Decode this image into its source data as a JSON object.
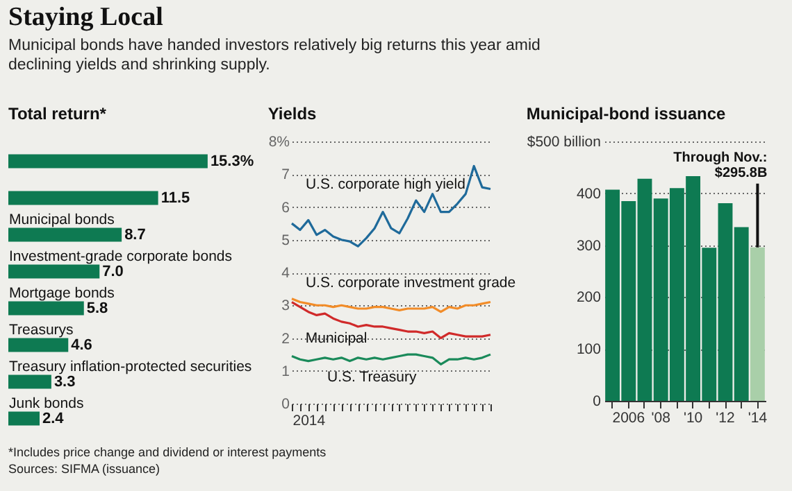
{
  "chart_data": [
    {
      "type": "other",
      "title": "Staying Local",
      "subtitle": "Municipal bonds have handed investors relatively big returns this year amid declining yields and shrinking supply.",
      "annotations": [
        "*Includes price change and dividend or interest payments",
        "Sources: SIFMA (issuance)"
      ]
    },
    {
      "type": "bar",
      "orientation": "horizontal",
      "title": "Total return*",
      "categories": [
        null,
        null,
        "Municipal bonds",
        "Investment-grade corporate bonds",
        "Mortgage bonds",
        "Treasurys",
        "Treasury inflation-protected securities",
        "Junk bonds"
      ],
      "values": [
        15.3,
        11.5,
        8.7,
        7.0,
        5.8,
        4.6,
        3.3,
        2.4
      ],
      "value_labels": [
        "15.3%",
        "11.5",
        "8.7",
        "7.0",
        "5.8",
        "4.6",
        "3.3",
        "2.4"
      ],
      "color": "#0e7a52",
      "tick_labels": "y"
    },
    {
      "type": "line",
      "title": "Yields",
      "categories": [
        null,
        null,
        "2014",
        null,
        null,
        null,
        null,
        null,
        null,
        null,
        null,
        null,
        null,
        null,
        null,
        null,
        null,
        null,
        null,
        null,
        null,
        null,
        null,
        null,
        null
      ],
      "series": [
        {
          "name": "U.S. corporate high yield",
          "color": "#1f6a9a",
          "values": [
            5.5,
            5.3,
            5.6,
            5.15,
            5.3,
            5.1,
            5.0,
            4.95,
            4.8,
            5.05,
            5.35,
            5.85,
            5.35,
            5.2,
            5.65,
            6.2,
            5.85,
            6.4,
            5.85,
            5.85,
            6.1,
            6.4,
            7.25,
            6.6,
            6.55
          ]
        },
        {
          "name": "U.S. corporate investment grade",
          "color": "#f28c28",
          "values": [
            3.2,
            3.1,
            3.05,
            3.0,
            3.0,
            2.95,
            3.0,
            2.95,
            2.9,
            2.9,
            2.95,
            2.95,
            2.9,
            2.85,
            2.9,
            2.9,
            2.9,
            2.95,
            2.8,
            2.95,
            2.9,
            3.0,
            3.0,
            3.05,
            3.1
          ]
        },
        {
          "name": "Municipal",
          "color": "#d02a2a",
          "values": [
            3.1,
            2.95,
            2.8,
            2.7,
            2.75,
            2.6,
            2.5,
            2.45,
            2.35,
            2.4,
            2.35,
            2.35,
            2.3,
            2.25,
            2.2,
            2.2,
            2.15,
            2.2,
            2.0,
            2.15,
            2.1,
            2.05,
            2.05,
            2.05,
            2.1
          ]
        },
        {
          "name": "U.S. Treasury",
          "color": "#1a8a5a",
          "values": [
            1.45,
            1.35,
            1.3,
            1.35,
            1.4,
            1.35,
            1.4,
            1.3,
            1.4,
            1.35,
            1.4,
            1.35,
            1.4,
            1.45,
            1.5,
            1.5,
            1.45,
            1.4,
            1.2,
            1.35,
            1.35,
            1.4,
            1.35,
            1.4,
            1.5
          ]
        }
      ],
      "ylim": [
        0,
        8
      ],
      "yticks": [
        0,
        1,
        2,
        3,
        4,
        5,
        6,
        7,
        {
          "value": 8,
          "label": "8%"
        }
      ],
      "grid": "y"
    },
    {
      "type": "bar",
      "title": "Municipal-bond issuance",
      "categories": [
        null,
        "2006",
        null,
        "'08",
        null,
        "'10",
        null,
        "'12",
        null,
        "'14"
      ],
      "values": [
        407,
        385,
        428,
        390,
        410,
        433,
        295,
        381,
        335,
        295.8
      ],
      "colors": [
        "#0e7a52",
        "#0e7a52",
        "#0e7a52",
        "#0e7a52",
        "#0e7a52",
        "#0e7a52",
        "#0e7a52",
        "#0e7a52",
        "#0e7a52",
        "#a9cfa9"
      ],
      "ylim": [
        0,
        500
      ],
      "yticks": [
        0,
        100,
        200,
        300,
        400,
        {
          "value": 500,
          "label": "$500 billion"
        }
      ],
      "grid": "y",
      "annotations": [
        {
          "text": "Through Nov.: $295.8B",
          "x": "'14",
          "y": 295.8
        }
      ]
    }
  ]
}
